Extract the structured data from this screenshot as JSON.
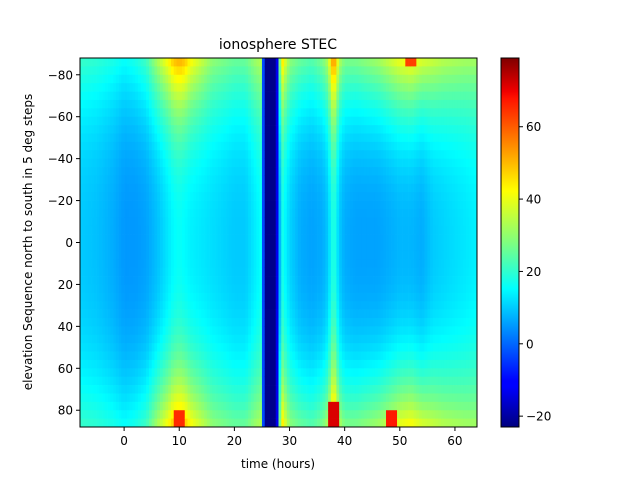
{
  "chart_data": {
    "type": "heatmap",
    "title": "ionosphere STEC",
    "xlabel": "time (hours)",
    "ylabel": "elevation Sequence north to south in 5 deg steps",
    "xlim": [
      -8,
      64
    ],
    "ylim": [
      -88,
      88
    ],
    "y_axis_inverted": true,
    "xticks": [
      0,
      10,
      20,
      30,
      40,
      50,
      60
    ],
    "yticks": [
      -80,
      -60,
      -40,
      -20,
      0,
      20,
      40,
      60,
      80
    ],
    "colormap": "jet",
    "colorbar": {
      "range": [
        -23,
        79
      ],
      "ticks": [
        -20,
        0,
        20,
        40,
        60
      ]
    },
    "grid": false,
    "time_profile": {
      "x": [
        -8,
        -5,
        -2,
        0,
        2,
        4,
        6,
        8,
        9,
        10,
        11,
        12,
        14,
        16,
        18,
        20,
        22,
        24,
        25,
        25.5,
        27.5,
        28.5,
        30,
        32,
        34,
        36,
        37,
        38,
        39,
        40,
        42,
        44,
        46,
        48,
        50,
        52,
        54,
        56,
        58,
        60,
        62,
        64
      ],
      "stec_at_zenith": [
        10,
        9,
        7,
        5,
        5,
        6,
        9,
        13,
        15,
        16,
        15,
        14,
        13,
        12,
        11,
        10,
        10,
        14,
        16,
        -22,
        -22,
        18,
        11,
        7,
        6,
        7,
        10,
        20,
        10,
        7,
        6,
        6,
        6,
        7,
        8,
        8,
        7,
        10,
        11,
        12,
        13,
        14
      ],
      "stec_at_edges": [
        21,
        20,
        18,
        16,
        18,
        22,
        33,
        42,
        48,
        50,
        48,
        42,
        36,
        30,
        28,
        26,
        26,
        32,
        34,
        -22,
        -22,
        46,
        30,
        26,
        24,
        28,
        34,
        56,
        34,
        28,
        28,
        30,
        32,
        36,
        40,
        42,
        38,
        36,
        34,
        33,
        32,
        32
      ]
    },
    "peaks": [
      {
        "x": 10,
        "y": 85,
        "value": 62
      },
      {
        "x": 38,
        "y": 82,
        "value": 70
      },
      {
        "x": 52,
        "y": -87,
        "value": 60
      },
      {
        "x": 48.5,
        "y": 85,
        "value": 64
      }
    ]
  }
}
